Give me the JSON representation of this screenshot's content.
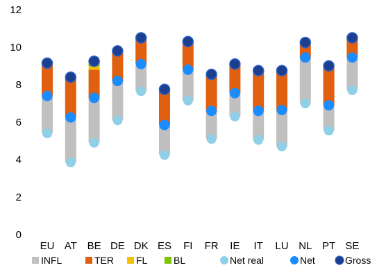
{
  "chart_data": {
    "type": "bar",
    "title": "",
    "xlabel": "",
    "ylabel": "",
    "ylim": [
      0,
      12
    ],
    "yticks": [
      0,
      2,
      4,
      6,
      8,
      10,
      12
    ],
    "grid": false,
    "legend_position": "bottom",
    "categories": [
      "EU",
      "AT",
      "BE",
      "DE",
      "DK",
      "ES",
      "FI",
      "FR",
      "IE",
      "IT",
      "LU",
      "NL",
      "PT",
      "SE"
    ],
    "stacked_segments": [
      {
        "name": "INFL",
        "color": "#c0c0c0",
        "from": [
          5.4,
          3.85,
          4.9,
          6.1,
          7.65,
          4.25,
          7.15,
          5.1,
          6.3,
          5.05,
          4.7,
          7.0,
          5.55,
          7.7
        ],
        "to": [
          7.4,
          6.25,
          7.3,
          8.2,
          9.1,
          5.85,
          8.8,
          6.6,
          7.55,
          6.6,
          6.65,
          9.45,
          6.9,
          9.45
        ]
      },
      {
        "name": "TER",
        "color": "#e06010",
        "from": [
          7.4,
          6.25,
          7.3,
          8.2,
          9.1,
          5.85,
          8.8,
          6.6,
          7.55,
          6.6,
          6.65,
          9.45,
          6.9,
          9.45
        ],
        "to": [
          9.15,
          8.4,
          8.8,
          9.8,
          10.5,
          7.75,
          10.3,
          8.55,
          9.1,
          8.75,
          8.75,
          10.25,
          9.0,
          10.5
        ]
      },
      {
        "name": "FL",
        "color": "#f5c000",
        "from": [
          9.15,
          8.4,
          8.8,
          9.8,
          10.5,
          7.75,
          10.3,
          8.55,
          9.1,
          8.75,
          8.75,
          10.25,
          9.0,
          10.5
        ],
        "to": [
          9.15,
          8.4,
          9.0,
          9.8,
          10.5,
          7.75,
          10.3,
          8.55,
          9.1,
          8.75,
          8.75,
          10.25,
          9.0,
          10.5
        ]
      },
      {
        "name": "BL",
        "color": "#7dc400",
        "from": [
          9.15,
          8.4,
          9.0,
          9.8,
          10.5,
          7.75,
          10.3,
          8.55,
          9.1,
          8.75,
          8.75,
          10.25,
          9.0,
          10.5
        ],
        "to": [
          9.15,
          8.4,
          9.2,
          9.8,
          10.5,
          7.75,
          10.3,
          8.55,
          9.1,
          8.75,
          8.75,
          10.25,
          9.0,
          10.5
        ]
      }
    ],
    "points": [
      {
        "name": "Net real",
        "color": "#8fd0e6",
        "values": [
          5.4,
          3.85,
          4.9,
          6.1,
          7.65,
          4.25,
          7.15,
          5.1,
          6.3,
          5.05,
          4.7,
          7.0,
          5.55,
          7.7
        ]
      },
      {
        "name": "Net",
        "color": "#1a8cff",
        "values": [
          7.4,
          6.25,
          7.3,
          8.2,
          9.1,
          5.85,
          8.8,
          6.6,
          7.55,
          6.6,
          6.65,
          9.45,
          6.9,
          9.45
        ]
      },
      {
        "name": "Gross",
        "color": "#1c3f8f",
        "values": [
          9.15,
          8.4,
          9.25,
          9.8,
          10.5,
          7.75,
          10.3,
          8.55,
          9.1,
          8.75,
          8.75,
          10.25,
          9.0,
          10.5
        ]
      }
    ],
    "legend": [
      {
        "name": "INFL",
        "shape": "square",
        "color": "#c0c0c0"
      },
      {
        "name": "TER",
        "shape": "square",
        "color": "#e06010"
      },
      {
        "name": "FL",
        "shape": "square",
        "color": "#f5c000"
      },
      {
        "name": "BL",
        "shape": "square",
        "color": "#7dc400"
      },
      {
        "name": "Net real",
        "shape": "circle",
        "color": "#8fd0e6"
      },
      {
        "name": "Net",
        "shape": "circle",
        "color": "#1a8cff"
      },
      {
        "name": "Gross",
        "shape": "circle",
        "color": "#1c3f8f"
      }
    ]
  }
}
